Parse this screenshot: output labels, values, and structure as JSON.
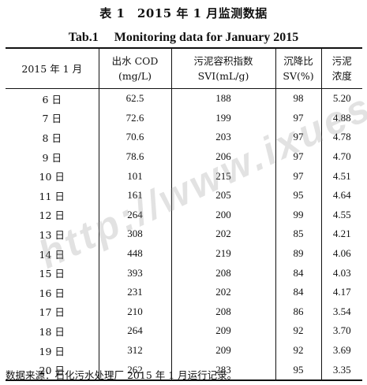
{
  "title_cn": "表 1　2015 年 1 月监测数据",
  "title_en": "Tab.1　 Monitoring data for January 2015",
  "headers": [
    {
      "line1": "2015 年 1 月",
      "line2": ""
    },
    {
      "line1": "出水 COD",
      "line2": "(mg/L)"
    },
    {
      "line1": "污泥容积指数",
      "line2": "SVI(mL/g)"
    },
    {
      "line1": "沉降比",
      "line2": "SV(%)"
    },
    {
      "line1": "污泥",
      "line2": "浓度"
    }
  ],
  "rows": [
    {
      "day": "6 日",
      "cod": "62.5",
      "svi": "188",
      "sv": "98",
      "conc": "5.20"
    },
    {
      "day": "7 日",
      "cod": "72.6",
      "svi": "199",
      "sv": "97",
      "conc": "4.88"
    },
    {
      "day": "8 日",
      "cod": "70.6",
      "svi": "203",
      "sv": "97",
      "conc": "4.78"
    },
    {
      "day": "9 日",
      "cod": "78.6",
      "svi": "206",
      "sv": "97",
      "conc": "4.70"
    },
    {
      "day": "10 日",
      "cod": "101",
      "svi": "215",
      "sv": "97",
      "conc": "4.51"
    },
    {
      "day": "11 日",
      "cod": "161",
      "svi": "205",
      "sv": "95",
      "conc": "4.64"
    },
    {
      "day": "12 日",
      "cod": "264",
      "svi": "200",
      "sv": "99",
      "conc": "4.55"
    },
    {
      "day": "13 日",
      "cod": "308",
      "svi": "202",
      "sv": "85",
      "conc": "4.21"
    },
    {
      "day": "14 日",
      "cod": "448",
      "svi": "219",
      "sv": "89",
      "conc": "4.06"
    },
    {
      "day": "15 日",
      "cod": "393",
      "svi": "208",
      "sv": "84",
      "conc": "4.03"
    },
    {
      "day": "16 日",
      "cod": "231",
      "svi": "202",
      "sv": "84",
      "conc": "4.17"
    },
    {
      "day": "17 日",
      "cod": "210",
      "svi": "208",
      "sv": "86",
      "conc": "3.54"
    },
    {
      "day": "18 日",
      "cod": "264",
      "svi": "209",
      "sv": "92",
      "conc": "3.70"
    },
    {
      "day": "19 日",
      "cod": "312",
      "svi": "209",
      "sv": "92",
      "conc": "3.69"
    },
    {
      "day": "20 日",
      "cod": "262",
      "svi": "283",
      "sv": "95",
      "conc": "3.35"
    }
  ],
  "source_note": "数据来源：石化污水处理厂 2015 年 1 月运行记录。",
  "watermark": "http://www.ixueshu"
}
